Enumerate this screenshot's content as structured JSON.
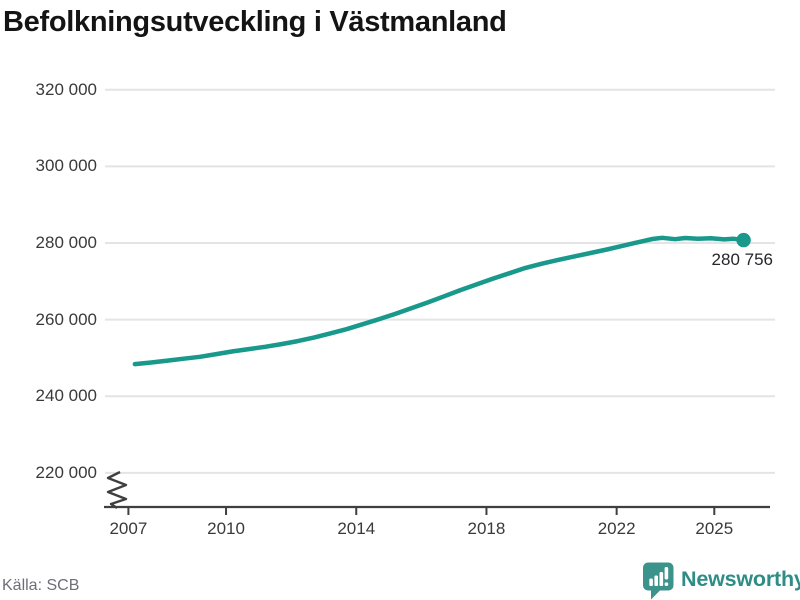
{
  "title": "Befolkningsutveckling i Västmanland",
  "footer": {
    "source": "Källa: SCB",
    "brand": "Newsworthy"
  },
  "colors": {
    "line": "#18998c",
    "grid": "#e4e4e4",
    "axis": "#3f3f3f",
    "title_text": "#141414",
    "tick_text": "#3a3a3a",
    "point_label_text": "#26262b",
    "source_text": "#6e6e78",
    "brand_text": "#2f8c86",
    "brand_icon": "#3c938b"
  },
  "chart_data": {
    "type": "line",
    "title": "Befolkningsutveckling i Västmanland",
    "xlabel": "",
    "ylabel": "",
    "grid": "horizontal-only",
    "legend": "none",
    "axis_break_bottom": true,
    "ylim_display": [
      215000,
      325000
    ],
    "x_axis": {
      "ticks": [
        {
          "value": 2007,
          "label": "2007"
        },
        {
          "value": 2010,
          "label": "2010"
        },
        {
          "value": 2014,
          "label": "2014"
        },
        {
          "value": 2018,
          "label": "2018"
        },
        {
          "value": 2022,
          "label": "2022"
        },
        {
          "value": 2025,
          "label": "2025"
        }
      ]
    },
    "y_axis": {
      "ticks": [
        {
          "value": 320000,
          "label": "320 000"
        },
        {
          "value": 300000,
          "label": "300 000"
        },
        {
          "value": 280000,
          "label": "280 000"
        },
        {
          "value": 260000,
          "label": "260 000"
        },
        {
          "value": 240000,
          "label": "240 000"
        },
        {
          "value": 220000,
          "label": "220 000"
        }
      ]
    },
    "series": [
      {
        "points": [
          [
            2007.2,
            248400
          ],
          [
            2007.7,
            248800
          ],
          [
            2008.2,
            249300
          ],
          [
            2008.7,
            249800
          ],
          [
            2009.2,
            250300
          ],
          [
            2009.7,
            251000
          ],
          [
            2010.2,
            251700
          ],
          [
            2010.7,
            252300
          ],
          [
            2011.2,
            252900
          ],
          [
            2011.7,
            253600
          ],
          [
            2012.2,
            254400
          ],
          [
            2012.7,
            255300
          ],
          [
            2013.2,
            256400
          ],
          [
            2013.7,
            257500
          ],
          [
            2014.2,
            258800
          ],
          [
            2014.7,
            260100
          ],
          [
            2015.2,
            261500
          ],
          [
            2015.7,
            263000
          ],
          [
            2016.2,
            264500
          ],
          [
            2016.7,
            266100
          ],
          [
            2017.2,
            267700
          ],
          [
            2017.7,
            269200
          ],
          [
            2018.2,
            270700
          ],
          [
            2018.7,
            272100
          ],
          [
            2019.2,
            273500
          ],
          [
            2019.7,
            274600
          ],
          [
            2020.2,
            275600
          ],
          [
            2020.7,
            276500
          ],
          [
            2021.2,
            277400
          ],
          [
            2021.7,
            278300
          ],
          [
            2022.2,
            279300
          ],
          [
            2022.7,
            280300
          ],
          [
            2023.1,
            281050
          ],
          [
            2023.4,
            281350
          ],
          [
            2023.8,
            281000
          ],
          [
            2024.1,
            281300
          ],
          [
            2024.5,
            281100
          ],
          [
            2024.9,
            281250
          ],
          [
            2025.3,
            280950
          ],
          [
            2025.6,
            281100
          ],
          [
            2025.9,
            280756
          ]
        ],
        "end_dot": true,
        "end_label": "280 756",
        "end_value": 280756
      }
    ],
    "source": "Källa: SCB"
  }
}
